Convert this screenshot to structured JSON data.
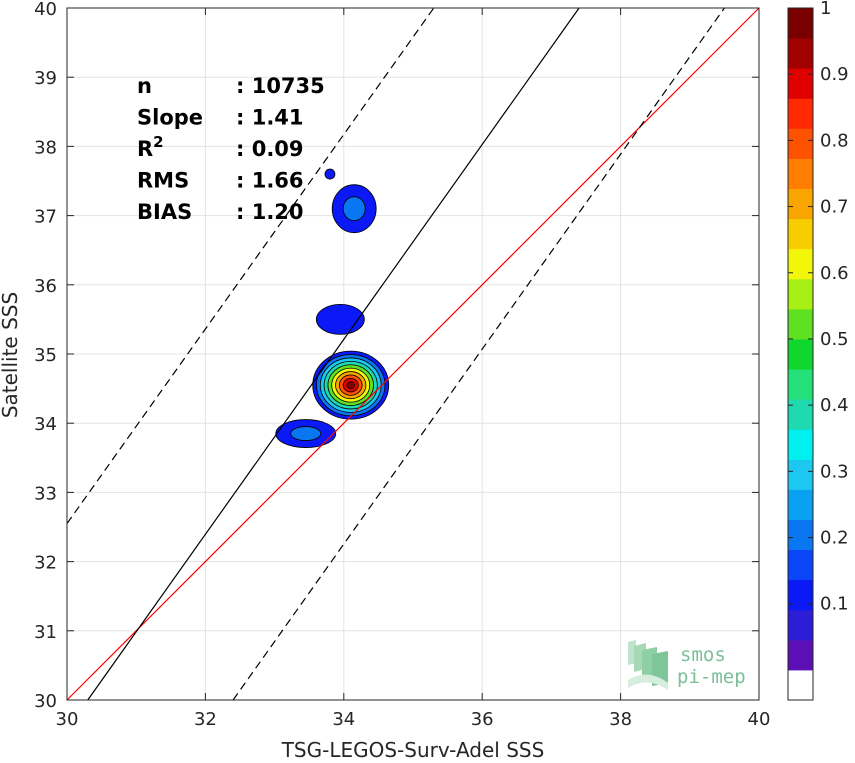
{
  "chart_data": {
    "type": "contour",
    "xlabel": "TSG-LEGOS-Surv-Adel SSS",
    "ylabel": "Satellite SSS",
    "xlim": [
      30,
      40
    ],
    "ylim": [
      30,
      40
    ],
    "xticks": [
      "30",
      "32",
      "34",
      "36",
      "38",
      "40"
    ],
    "yticks": [
      "30",
      "31",
      "32",
      "33",
      "34",
      "35",
      "36",
      "37",
      "38",
      "39",
      "40"
    ],
    "grid": true,
    "stats": [
      {
        "key": "n",
        "value": ": 10735"
      },
      {
        "key": "Slope",
        "value": ": 1.41"
      },
      {
        "key": "R",
        "sup": "2",
        "value": ": 0.09"
      },
      {
        "key": "RMS",
        "value": ": 1.66"
      },
      {
        "key": "BIAS",
        "value": ": 1.20"
      }
    ],
    "reference_lines": [
      {
        "kind": "one-to-one",
        "color": "#ff0000",
        "x": [
          30,
          40
        ],
        "y": [
          30,
          40
        ]
      },
      {
        "kind": "regression",
        "color": "#000000",
        "x": [
          30.3,
          37.4
        ],
        "y": [
          30,
          40
        ]
      },
      {
        "kind": "offset-upper",
        "color": "#000000",
        "dash": true,
        "x": [
          30,
          35.3
        ],
        "y": [
          32.55,
          40
        ]
      },
      {
        "kind": "offset-lower",
        "color": "#000000",
        "dash": true,
        "x": [
          32.4,
          39.5
        ],
        "y": [
          30,
          40
        ]
      }
    ],
    "density_clusters": [
      {
        "cx": 34.15,
        "cy": 37.1,
        "peak": 0.2
      },
      {
        "cx": 33.8,
        "cy": 37.6,
        "peak": 0.1
      },
      {
        "cx": 33.95,
        "cy": 35.5,
        "peak": 0.1
      },
      {
        "cx": 34.1,
        "cy": 34.55,
        "peak": 1.0
      },
      {
        "cx": 33.45,
        "cy": 33.85,
        "peak": 0.2
      }
    ],
    "colorbar": {
      "ticks": [
        "0.1",
        "0.2",
        "0.3",
        "0.4",
        "0.5",
        "0.6",
        "0.7",
        "0.8",
        "0.9",
        "1"
      ],
      "colors": [
        "#ffffff",
        "#5b0fb5",
        "#2b1ed6",
        "#0a19f5",
        "#0a45f7",
        "#0a77f2",
        "#0aa1f1",
        "#1cc7f0",
        "#00f0f0",
        "#1fd9b0",
        "#24e07a",
        "#10d72e",
        "#5fe020",
        "#a7ef14",
        "#f2f709",
        "#f8cd00",
        "#f9a500",
        "#ff7d00",
        "#ff5200",
        "#ff2a00",
        "#e00000",
        "#a30000",
        "#7a0000"
      ]
    },
    "logo": {
      "line1": "smos",
      "line2": "pi-mep"
    }
  }
}
